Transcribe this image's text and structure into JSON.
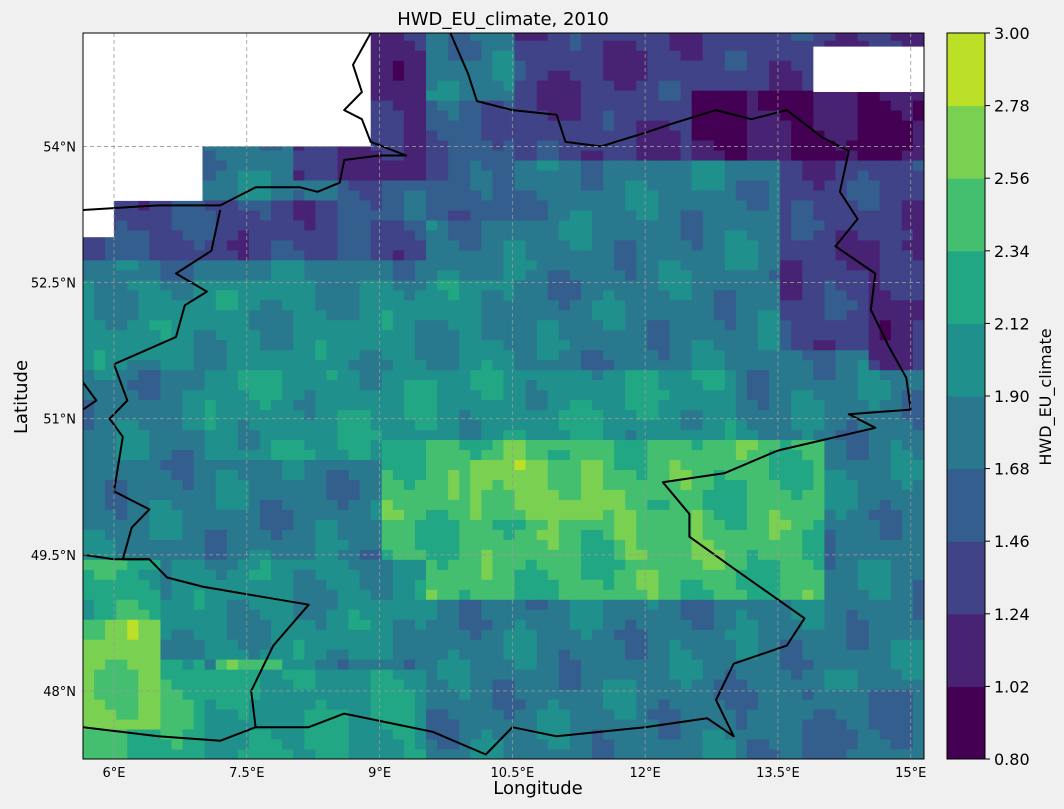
{
  "chart_data": {
    "type": "heatmap",
    "title": "HWD_EU_climate, 2010",
    "xlabel": "Longitude",
    "ylabel": "Latitude",
    "xlim": [
      5.65,
      15.15
    ],
    "ylim": [
      47.25,
      55.25
    ],
    "xticks": [
      {
        "value": 6,
        "label": "6°E"
      },
      {
        "value": 7.5,
        "label": "7.5°E"
      },
      {
        "value": 9,
        "label": "9°E"
      },
      {
        "value": 10.5,
        "label": "10.5°E"
      },
      {
        "value": 12,
        "label": "12°E"
      },
      {
        "value": 13.5,
        "label": "13.5°E"
      },
      {
        "value": 15,
        "label": "15°E"
      }
    ],
    "yticks": [
      {
        "value": 48,
        "label": "48°N"
      },
      {
        "value": 49.5,
        "label": "49.5°N"
      },
      {
        "value": 51,
        "label": "51°N"
      },
      {
        "value": 52.5,
        "label": "52.5°N"
      },
      {
        "value": 54,
        "label": "54°N"
      }
    ],
    "grid": true,
    "colorbar": {
      "label": "HWD_EU_climate",
      "levels": [
        0.8,
        1.02,
        1.24,
        1.46,
        1.68,
        1.9,
        2.12,
        2.34,
        2.56,
        2.78,
        3.0
      ],
      "tick_labels": [
        "0.80",
        "1.02",
        "1.24",
        "1.46",
        "1.68",
        "1.90",
        "2.12",
        "2.34",
        "2.56",
        "2.78",
        "3.00"
      ],
      "colors": [
        "#440154",
        "#482374",
        "#404387",
        "#345e8d",
        "#29788e",
        "#20908d",
        "#22a785",
        "#44bf70",
        "#7ad151",
        "#bcdf27",
        "#fde725"
      ]
    },
    "field_regions": [
      {
        "lon": [
          5.65,
          15.15
        ],
        "lat": [
          47.25,
          55.25
        ],
        "value": 1.8
      },
      {
        "lon": [
          5.65,
          9.5
        ],
        "lat": [
          52.8,
          53.4
        ],
        "value": 1.4
      },
      {
        "lon": [
          8.5,
          10.5
        ],
        "lat": [
          53.2,
          54.5
        ],
        "value": 1.55
      },
      {
        "lon": [
          8.0,
          9.5
        ],
        "lat": [
          53.6,
          55.25
        ],
        "value": 1.2
      },
      {
        "lon": [
          10.5,
          15.15
        ],
        "lat": [
          53.8,
          55.25
        ],
        "value": 1.3
      },
      {
        "lon": [
          12.5,
          15.15
        ],
        "lat": [
          53.8,
          54.6
        ],
        "value": 1.0
      },
      {
        "lon": [
          13.5,
          15.15
        ],
        "lat": [
          51.8,
          53.8
        ],
        "value": 1.35
      },
      {
        "lon": [
          14.5,
          15.15
        ],
        "lat": [
          51.5,
          53.0
        ],
        "value": 1.2
      },
      {
        "lon": [
          5.65,
          10.5
        ],
        "lat": [
          51.5,
          52.5
        ],
        "value": 1.95
      },
      {
        "lon": [
          7.0,
          13.0
        ],
        "lat": [
          50.5,
          51.5
        ],
        "value": 2.05
      },
      {
        "lon": [
          9.0,
          14.0
        ],
        "lat": [
          49.0,
          50.8
        ],
        "value": 2.4
      },
      {
        "lon": [
          10.0,
          11.5
        ],
        "lat": [
          49.9,
          50.5
        ],
        "value": 2.65
      },
      {
        "lon": [
          11.7,
          12.7
        ],
        "lat": [
          49.4,
          50.0
        ],
        "value": 2.55
      },
      {
        "lon": [
          5.65,
          7.0
        ],
        "lat": [
          47.25,
          49.5
        ],
        "value": 2.3
      },
      {
        "lon": [
          5.65,
          6.5
        ],
        "lat": [
          47.6,
          48.8
        ],
        "value": 2.6
      },
      {
        "lon": [
          7.2,
          7.9
        ],
        "lat": [
          47.9,
          48.9
        ],
        "value": 2.45
      },
      {
        "lon": [
          7.0,
          9.5
        ],
        "lat": [
          47.25,
          48.2
        ],
        "value": 2.1
      },
      {
        "lon": [
          10.0,
          15.15
        ],
        "lat": [
          47.25,
          48.6
        ],
        "value": 1.8
      },
      {
        "lon": [
          13.0,
          15.15
        ],
        "lat": [
          47.25,
          48.0
        ],
        "value": 1.7
      },
      {
        "lon": [
          6.5,
          9.5
        ],
        "lat": [
          48.3,
          49.5
        ],
        "value": 1.95
      }
    ],
    "missing_regions": [
      {
        "lon": [
          5.65,
          8.9
        ],
        "lat": [
          54.0,
          55.25
        ]
      },
      {
        "lon": [
          5.65,
          7.0
        ],
        "lat": [
          53.4,
          54.0
        ]
      },
      {
        "lon": [
          5.65,
          6.0
        ],
        "lat": [
          53.0,
          53.5
        ]
      },
      {
        "lon": [
          13.9,
          15.15
        ],
        "lat": [
          54.6,
          55.1
        ]
      }
    ],
    "coastlines": [
      [
        [
          5.65,
          53.3
        ],
        [
          6.5,
          53.35
        ],
        [
          7.2,
          53.35
        ],
        [
          7.6,
          53.55
        ],
        [
          8.1,
          53.55
        ],
        [
          8.3,
          53.5
        ],
        [
          8.55,
          53.6
        ],
        [
          8.6,
          53.85
        ],
        [
          9.0,
          53.9
        ],
        [
          9.3,
          53.9
        ],
        [
          8.9,
          54.05
        ],
        [
          8.8,
          54.3
        ],
        [
          8.6,
          54.4
        ],
        [
          8.8,
          54.6
        ],
        [
          8.7,
          54.9
        ],
        [
          8.9,
          55.25
        ]
      ],
      [
        [
          9.8,
          55.25
        ],
        [
          10.0,
          54.8
        ],
        [
          10.1,
          54.5
        ],
        [
          10.5,
          54.4
        ],
        [
          11.0,
          54.35
        ],
        [
          11.1,
          54.05
        ],
        [
          11.5,
          54.0
        ],
        [
          12.0,
          54.15
        ],
        [
          12.3,
          54.25
        ],
        [
          12.8,
          54.4
        ],
        [
          13.2,
          54.3
        ],
        [
          13.6,
          54.4
        ],
        [
          14.0,
          54.1
        ],
        [
          14.3,
          53.95
        ],
        [
          14.2,
          53.5
        ],
        [
          14.4,
          53.2
        ],
        [
          14.15,
          52.9
        ],
        [
          14.6,
          52.6
        ],
        [
          14.55,
          52.2
        ],
        [
          14.75,
          51.8
        ],
        [
          14.95,
          51.45
        ],
        [
          15.0,
          51.1
        ]
      ],
      [
        [
          15.0,
          51.1
        ],
        [
          14.3,
          51.05
        ],
        [
          14.6,
          50.9
        ],
        [
          13.5,
          50.65
        ],
        [
          12.9,
          50.4
        ],
        [
          12.2,
          50.3
        ],
        [
          12.5,
          49.95
        ],
        [
          12.5,
          49.7
        ],
        [
          13.0,
          49.35
        ],
        [
          13.8,
          48.8
        ],
        [
          13.6,
          48.5
        ],
        [
          13.0,
          48.3
        ],
        [
          12.8,
          47.9
        ],
        [
          13.0,
          47.5
        ],
        [
          12.7,
          47.7
        ],
        [
          12.0,
          47.6
        ],
        [
          11.0,
          47.5
        ],
        [
          10.5,
          47.6
        ],
        [
          10.2,
          47.3
        ],
        [
          9.6,
          47.55
        ],
        [
          8.6,
          47.75
        ],
        [
          8.2,
          47.6
        ],
        [
          7.6,
          47.6
        ]
      ],
      [
        [
          7.6,
          47.6
        ],
        [
          7.55,
          48.0
        ],
        [
          7.8,
          48.5
        ],
        [
          8.2,
          48.95
        ],
        [
          7.6,
          49.05
        ],
        [
          7.0,
          49.15
        ],
        [
          6.6,
          49.25
        ],
        [
          6.4,
          49.45
        ],
        [
          6.1,
          49.45
        ],
        [
          6.2,
          49.8
        ],
        [
          6.4,
          50.0
        ],
        [
          6.0,
          50.2
        ],
        [
          6.1,
          50.8
        ],
        [
          5.95,
          51.0
        ],
        [
          6.15,
          51.2
        ],
        [
          6.0,
          51.6
        ],
        [
          6.7,
          51.9
        ],
        [
          6.8,
          52.25
        ],
        [
          7.05,
          52.4
        ],
        [
          6.7,
          52.6
        ],
        [
          7.1,
          52.85
        ],
        [
          7.2,
          53.3
        ]
      ],
      [
        [
          5.65,
          51.1
        ],
        [
          5.8,
          51.2
        ],
        [
          5.65,
          51.4
        ]
      ],
      [
        [
          5.65,
          49.5
        ],
        [
          6.0,
          49.45
        ],
        [
          6.4,
          49.45
        ]
      ],
      [
        [
          5.65,
          47.6
        ],
        [
          6.5,
          47.5
        ],
        [
          7.2,
          47.45
        ],
        [
          7.6,
          47.6
        ]
      ]
    ]
  }
}
